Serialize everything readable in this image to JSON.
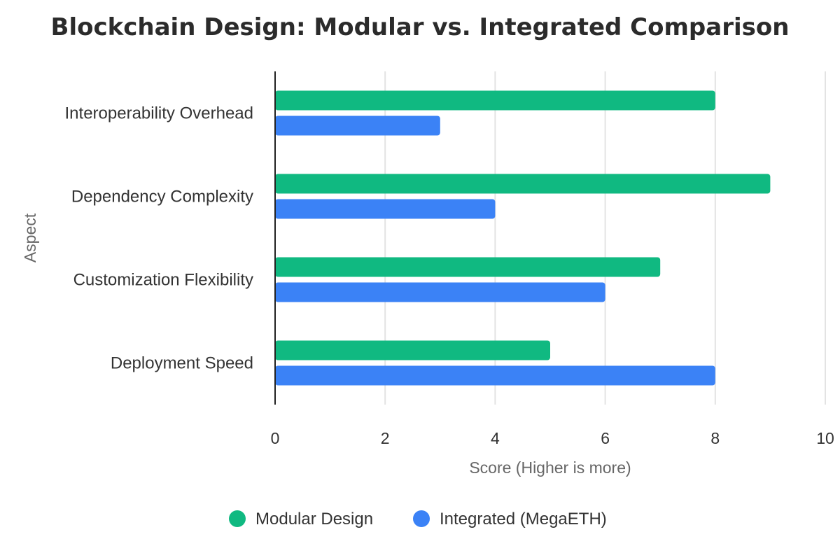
{
  "chart_data": {
    "type": "bar",
    "orientation": "horizontal",
    "title": "Blockchain Design: Modular vs. Integrated Comparison",
    "xlabel": "Score (Higher is more)",
    "ylabel": "Aspect",
    "xlim": [
      0,
      10
    ],
    "xticks": [
      0,
      2,
      4,
      6,
      8,
      10
    ],
    "grid": true,
    "legend_position": "bottom-center",
    "categories": [
      "Interoperability Overhead",
      "Dependency Complexity",
      "Customization Flexibility",
      "Deployment Speed"
    ],
    "series": [
      {
        "name": "Modular Design",
        "color": "#10b981",
        "values": [
          8,
          9,
          7,
          5
        ]
      },
      {
        "name": "Integrated (MegaETH)",
        "color": "#3b82f6",
        "values": [
          3,
          4,
          6,
          8
        ]
      }
    ]
  }
}
